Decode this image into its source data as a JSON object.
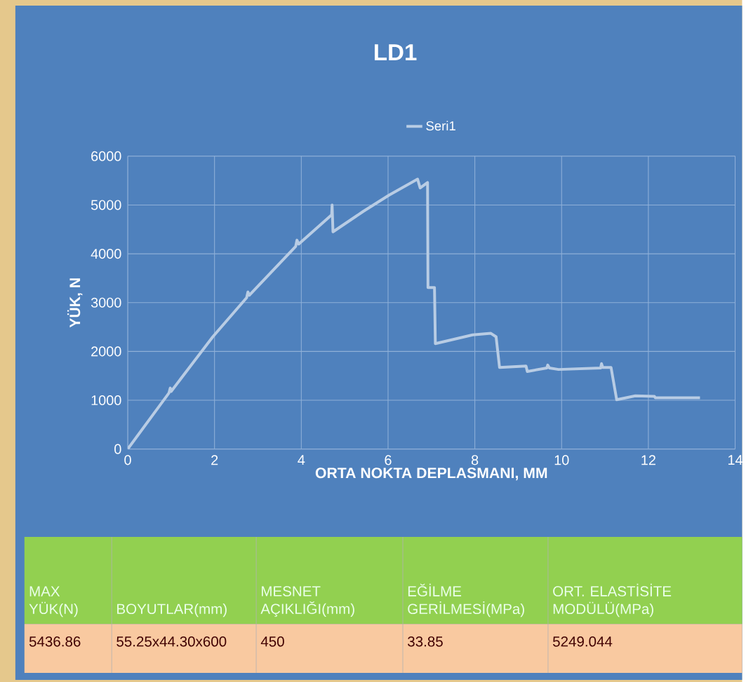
{
  "chart_data": {
    "type": "line",
    "title": "LD1",
    "xlabel": "ORTA NOKTA DEPLASMANI, MM",
    "ylabel": "YÜK, N",
    "x": [
      0,
      0.95,
      0.98,
      1.0,
      1.96,
      2.74,
      2.77,
      2.8,
      3.87,
      3.9,
      3.94,
      4.7,
      4.71,
      4.73,
      5.43,
      6.02,
      6.68,
      6.74,
      6.91,
      6.92,
      7.07,
      7.09,
      7.95,
      8.37,
      8.49,
      8.57,
      9.18,
      9.21,
      9.66,
      9.68,
      9.72,
      9.93,
      10.9,
      10.92,
      10.95,
      11.14,
      11.27,
      11.7,
      12.14,
      12.16,
      13.19
    ],
    "series": [
      {
        "name": "Seri1",
        "color": "#b8cce4",
        "values": [
          0,
          1150,
          1250,
          1180,
          2300,
          3100,
          3220,
          3150,
          4150,
          4280,
          4200,
          4800,
          5000,
          4450,
          4870,
          5200,
          5530,
          5350,
          5460,
          3310,
          3310,
          2160,
          2340,
          2370,
          2300,
          1670,
          1700,
          1590,
          1660,
          1720,
          1660,
          1630,
          1660,
          1750,
          1670,
          1670,
          1010,
          1090,
          1080,
          1050,
          1050
        ]
      }
    ],
    "xlim": [
      0,
      14
    ],
    "xticks": [
      0,
      2,
      4,
      6,
      8,
      10,
      12,
      14
    ],
    "ylim": [
      0,
      6000
    ],
    "yticks": [
      0,
      1000,
      2000,
      3000,
      4000,
      5000,
      6000
    ],
    "grid": true,
    "legend": "top",
    "marker": "none",
    "line_style": "solid",
    "annotations": [
      "MAX YÜK(N)",
      "BOYUTLAR(mm)",
      "MESNET AÇIKLIĞI(mm)",
      "EĞİLME GERİLMESİ(MPa)",
      "ORT. ELASTİSİTE MODÜLÜ(MPa)",
      "5436.86",
      "55.25x44.30x600",
      "450",
      "33.85",
      "5249.044"
    ]
  }
}
